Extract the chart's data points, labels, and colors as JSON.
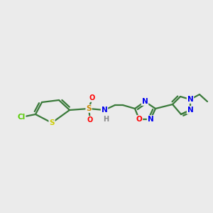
{
  "background_color": "#ebebeb",
  "bond_color": "#3a7a3a",
  "colors": {
    "Cl": "#55cc00",
    "S_thiophene": "#cccc00",
    "S_sulfonamide": "#cc8800",
    "O": "#ff0000",
    "N": "#0000ee",
    "C": "#3a7a3a",
    "H": "#888888"
  },
  "figsize": [
    3.0,
    3.0
  ],
  "dpi": 100
}
